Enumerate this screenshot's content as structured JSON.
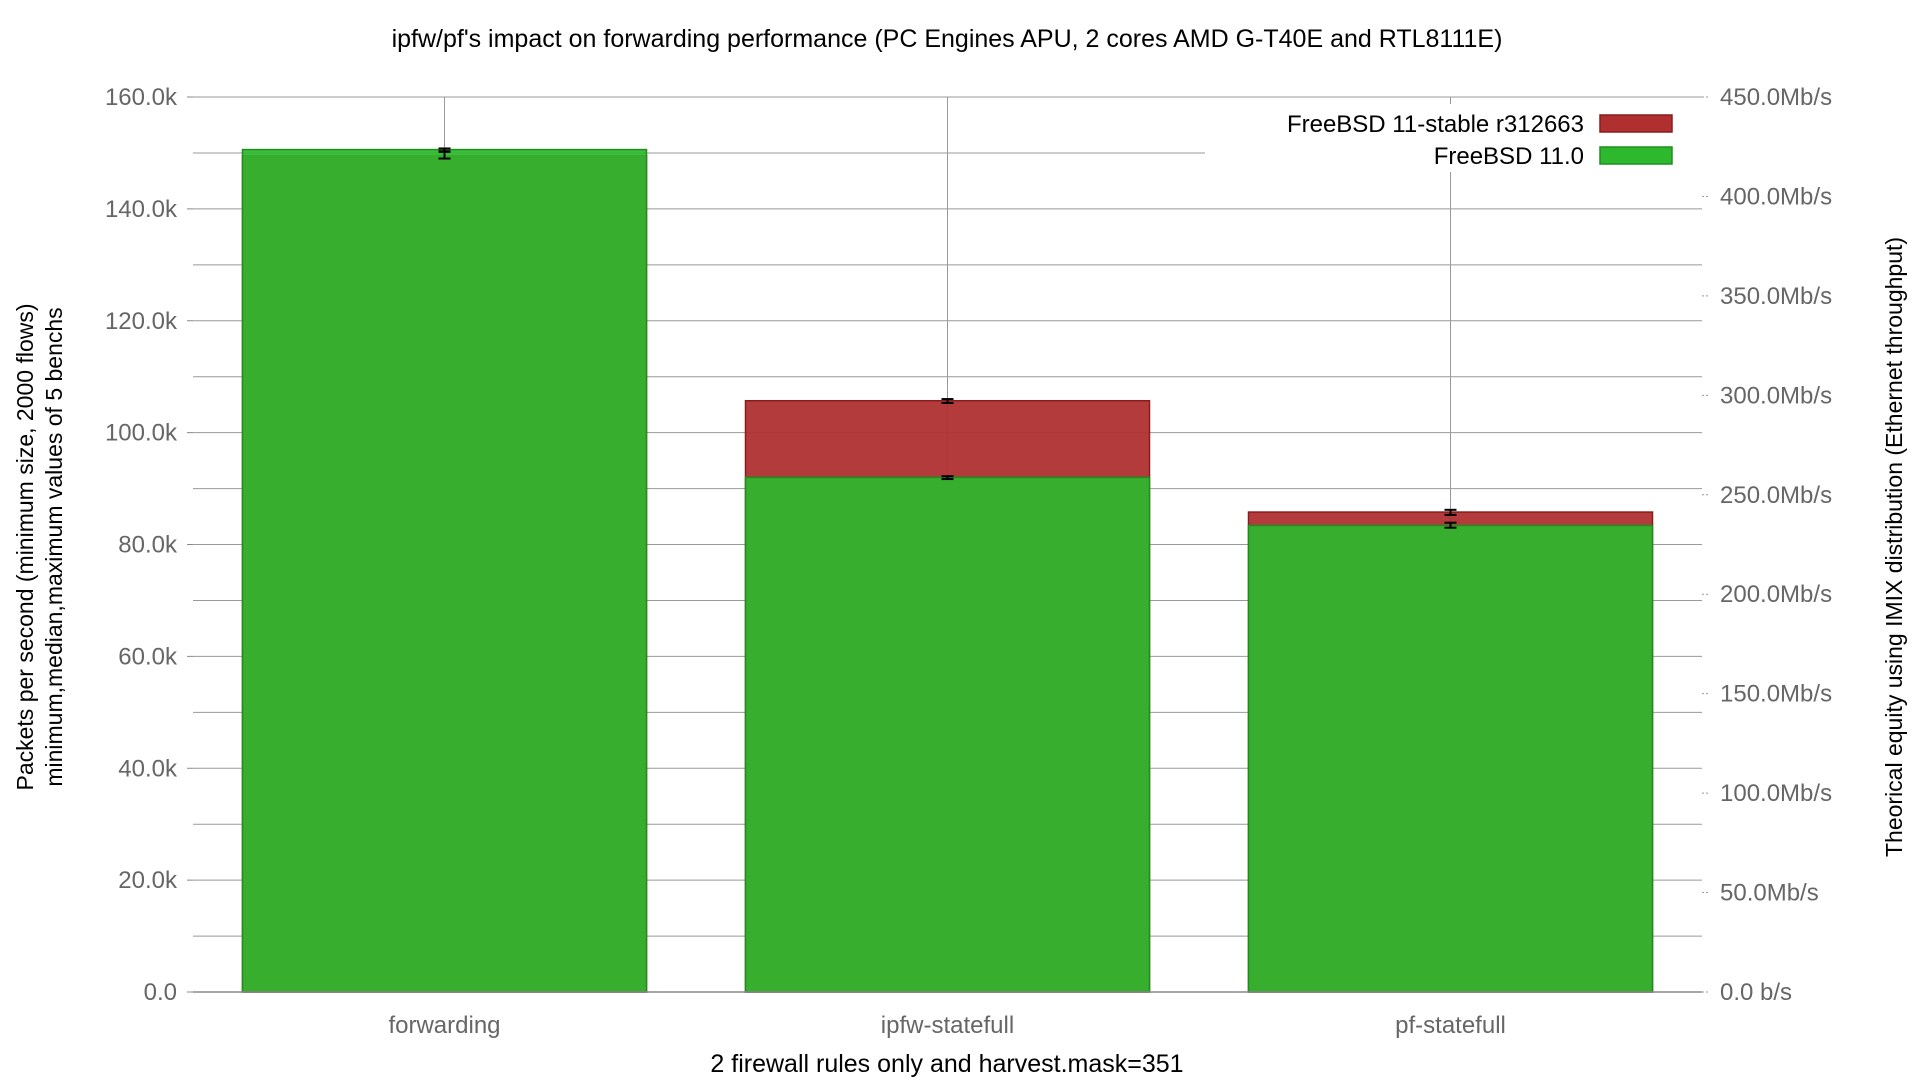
{
  "chart_data": {
    "type": "bar",
    "title": "ipfw/pf's impact on forwarding performance (PC Engines APU, 2 cores AMD G-T40E and RTL8111E)",
    "xlabel": "2 firewall rules only and harvest.mask=351",
    "ylabel_line1": "Packets per second (minimum size, 2000 flows)",
    "ylabel_line2": "minimum,median,maximum values of 5 benchs",
    "y2label": "Theorical equity using IMIX distribution (Ethernet throughput)",
    "categories": [
      "forwarding",
      "ipfw-statefull",
      "pf-statefull"
    ],
    "ylim": [
      0,
      160000
    ],
    "yticks": [
      0,
      20000,
      40000,
      60000,
      80000,
      100000,
      120000,
      140000,
      160000
    ],
    "ytick_labels": [
      "0.0",
      "20.0k",
      "40.0k",
      "60.0k",
      "80.0k",
      "100.0k",
      "120.0k",
      "140.0k",
      "160.0k"
    ],
    "y2lim": [
      0,
      450
    ],
    "y2ticks": [
      0,
      50,
      100,
      150,
      200,
      250,
      300,
      350,
      400,
      450
    ],
    "y2tick_labels": [
      "0.0 b/s",
      "50.0Mb/s",
      "100.0Mb/s",
      "150.0Mb/s",
      "200.0Mb/s",
      "250.0Mb/s",
      "300.0Mb/s",
      "350.0Mb/s",
      "400.0Mb/s",
      "450.0Mb/s"
    ],
    "legend_position": "top-right",
    "series": [
      {
        "name": "FreeBSD 11-stable r312663",
        "color": "#b03030",
        "values": [
          149500,
          105700,
          85800
        ],
        "err_min": [
          149000,
          105300,
          85300
        ],
        "err_max": [
          150200,
          106000,
          86200
        ]
      },
      {
        "name": "FreeBSD 11.0",
        "color": "#2eb82e",
        "values": [
          150600,
          92000,
          83400
        ],
        "err_min": [
          150300,
          91700,
          83000
        ],
        "err_max": [
          150800,
          92200,
          83900
        ]
      }
    ]
  }
}
